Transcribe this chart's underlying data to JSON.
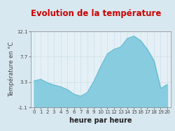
{
  "title": "Evolution de la température",
  "xlabel": "heure par heure",
  "ylabel": "Température en °C",
  "background_color": "#d8e8f0",
  "plot_bg_color": "#e4f0f6",
  "fill_color": "#88cce0",
  "line_color": "#60b8d0",
  "title_color": "#cc0000",
  "ylim": [
    -1.1,
    12.1
  ],
  "yticks": [
    -1.1,
    3.3,
    7.7,
    12.1
  ],
  "hours": [
    0,
    1,
    2,
    3,
    4,
    5,
    6,
    7,
    8,
    9,
    10,
    11,
    12,
    13,
    14,
    15,
    16,
    17,
    18,
    19,
    20
  ],
  "temps": [
    3.5,
    3.8,
    3.2,
    2.8,
    2.5,
    2.0,
    1.2,
    0.85,
    1.5,
    3.5,
    6.0,
    8.2,
    9.0,
    9.4,
    10.9,
    11.3,
    10.5,
    9.0,
    7.0,
    2.2,
    2.9
  ],
  "grid_color": "#c8dce6",
  "axis_label_fontsize": 6.0,
  "title_fontsize": 8.5,
  "tick_fontsize": 5.0,
  "xlabel_fontsize": 7.0
}
